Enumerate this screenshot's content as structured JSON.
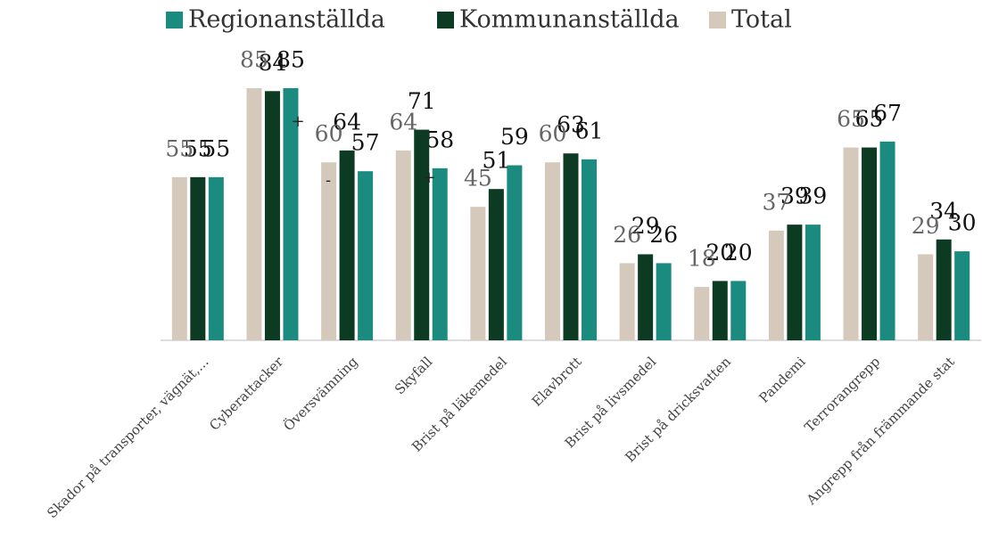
{
  "chart_data": {
    "type": "bar",
    "categories": [
      "Skador på transporter, vägnät,...",
      "Cyberattacker",
      "Översvämning",
      "Skyfall",
      "Brist på läkemedel",
      "Elavbrott",
      "Brist på livsmedel",
      "Brist på dricksvatten",
      "Pandemi",
      "Terrorangrepp",
      "Angrepp från främmande stat"
    ],
    "series": [
      {
        "name": "Regionanställda",
        "color": "#1a8b7e",
        "values": [
          55,
          85,
          57,
          58,
          59,
          61,
          26,
          20,
          39,
          67,
          30
        ]
      },
      {
        "name": "Kommunanställda",
        "color": "#0d3a22",
        "values": [
          55,
          84,
          64,
          71,
          51,
          63,
          29,
          20,
          39,
          65,
          34
        ]
      },
      {
        "name": "Total",
        "color": "#d5c9bc",
        "values": [
          55,
          85,
          60,
          64,
          45,
          60,
          26,
          18,
          37,
          65,
          29
        ]
      }
    ],
    "annotations": [
      "+",
      "-",
      "+"
    ]
  }
}
